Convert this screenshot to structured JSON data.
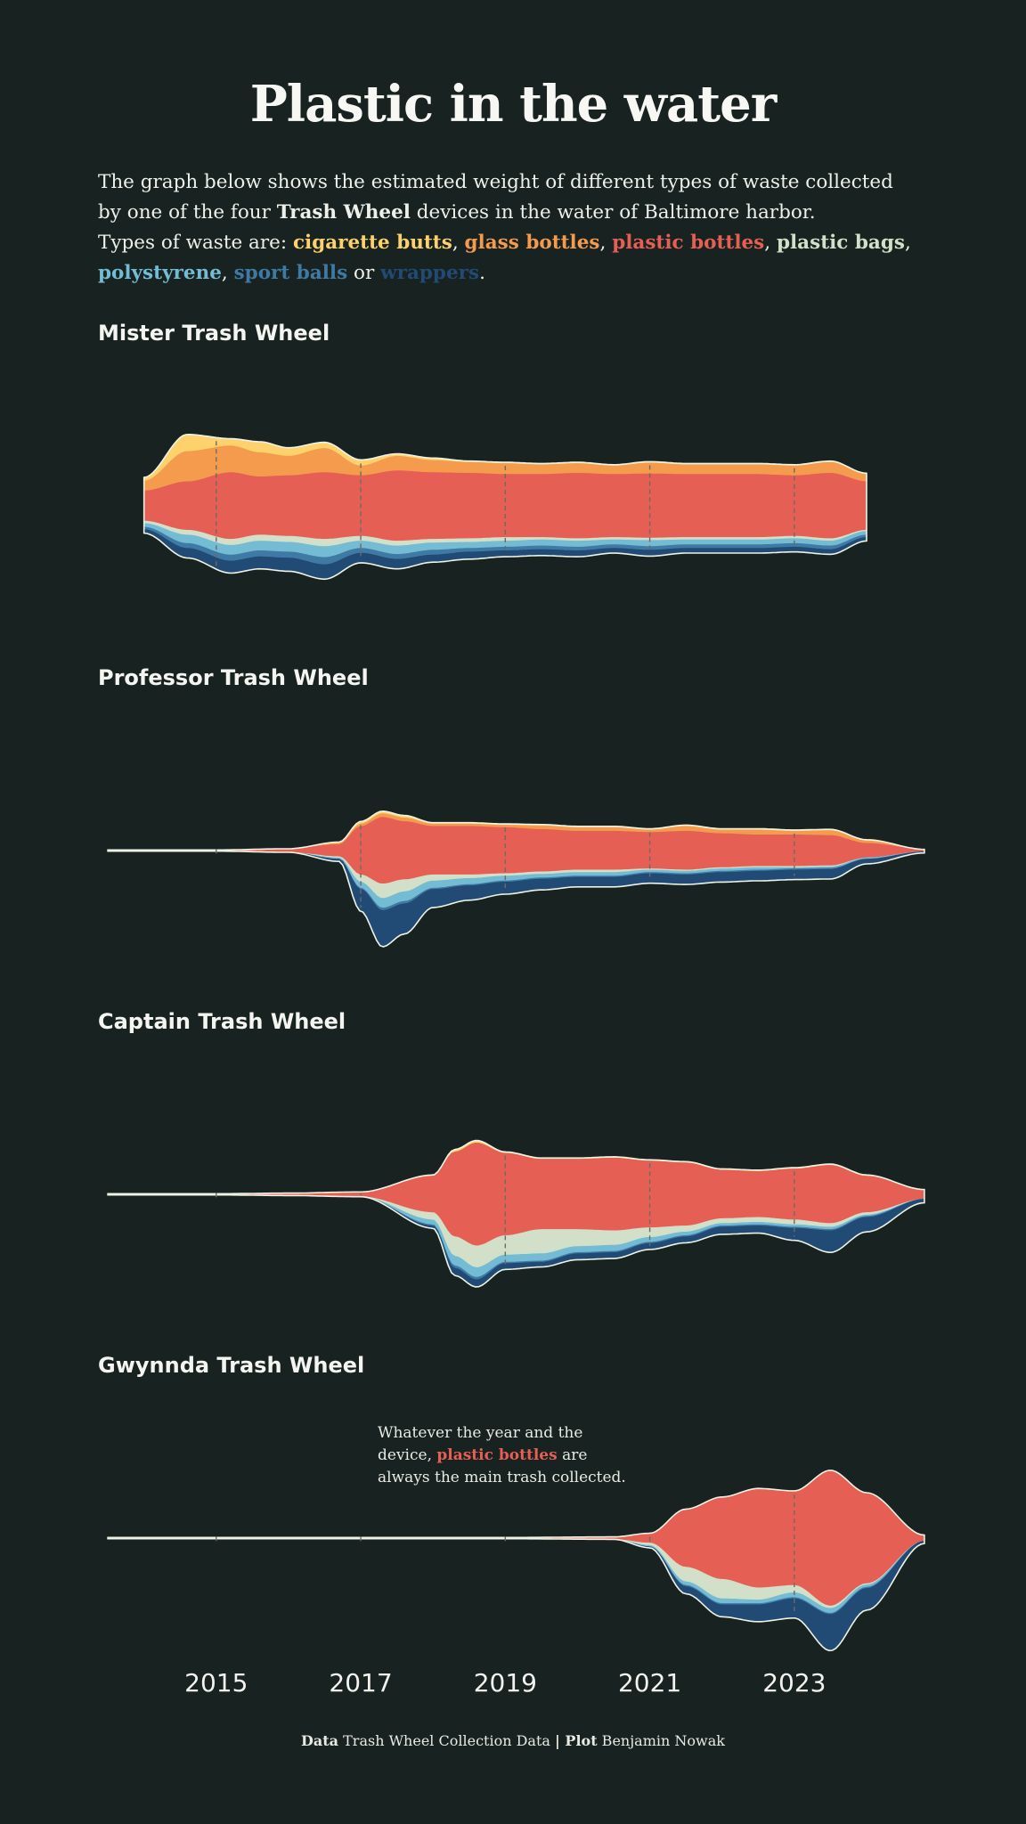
{
  "title": "Plastic in the water",
  "intro": {
    "line1": "The graph below shows the estimated weight of different types of waste collected",
    "line2_prefix": "by one of the four ",
    "line2_bold": "Trash Wheel",
    "line2_suffix": " devices in the water of Baltimore harbor.",
    "line3_prefix": "Types of waste are: ",
    "or_word": "or",
    "sep_comma": ", ",
    "end_period": "."
  },
  "waste_types": [
    {
      "label": "cigarette butts",
      "color": "#fdd16c"
    },
    {
      "label": "glass bottles",
      "color": "#f49b4d"
    },
    {
      "label": "plastic bottles",
      "color": "#e65f55"
    },
    {
      "label": "plastic bags",
      "color": "#d2e0c9"
    },
    {
      "label": "polystyrene",
      "color": "#73bcd4"
    },
    {
      "label": "sport balls",
      "color": "#3f7aa5"
    },
    {
      "label": "wrappers",
      "color": "#214a74"
    }
  ],
  "annotation": {
    "line1": "Whatever the year and the",
    "line2_prefix": "device, ",
    "highlight": "plastic bottles",
    "line2_suffix": " are",
    "line3": "always the main trash collected.",
    "highlight_color": "#e65f55"
  },
  "caption": {
    "data_label": "Data",
    "data_text": " Trash Wheel Collection Data ",
    "sep": "|",
    "plot_label": " Plot",
    "plot_text": " Benjamin Nowak"
  },
  "chart_data": {
    "type": "area",
    "subtype": "streamgraph",
    "x_ticks": [
      2015,
      2017,
      2019,
      2021,
      2023
    ],
    "x_range": [
      2013.4,
      2024.9
    ],
    "units": "estimated weight (relative, approximate)",
    "series_order_top_to_bottom": [
      "cigarette butts",
      "glass bottles",
      "plastic bottles",
      "plastic bags",
      "polystyrene",
      "sport balls",
      "wrappers"
    ],
    "panels": [
      {
        "name": "Mister Trash Wheel",
        "x": [
          2014.0,
          2014.6,
          2015.2,
          2015.6,
          2016.0,
          2016.5,
          2017.0,
          2017.5,
          2018.0,
          2018.5,
          2019.0,
          2019.5,
          2020.0,
          2020.5,
          2021.0,
          2021.5,
          2022.0,
          2022.5,
          2023.0,
          2023.5,
          2024.0
        ],
        "series": [
          {
            "name": "cigarette butts",
            "values": [
              3,
              14,
              6,
              9,
              7,
              5,
              5,
              2,
              2,
              1,
              1,
              1,
              1,
              1,
              1,
              1,
              1,
              1,
              1,
              1,
              1
            ]
          },
          {
            "name": "glass bottles",
            "values": [
              8,
              25,
              22,
              20,
              16,
              20,
              8,
              12,
              10,
              9,
              9,
              8,
              8,
              7,
              9,
              8,
              8,
              8,
              8,
              9,
              6
            ]
          },
          {
            "name": "plastic bottles",
            "values": [
              25,
              40,
              55,
              48,
              50,
              55,
              50,
              58,
              55,
              54,
              52,
              52,
              54,
              52,
              53,
              52,
              52,
              52,
              50,
              54,
              40
            ]
          },
          {
            "name": "plastic bags",
            "values": [
              2,
              4,
              5,
              5,
              5,
              6,
              4,
              4,
              3,
              3,
              3,
              2,
              2,
              2,
              2,
              2,
              2,
              2,
              2,
              2,
              1
            ]
          },
          {
            "name": "polystyrene",
            "values": [
              3,
              7,
              8,
              8,
              8,
              9,
              6,
              7,
              6,
              5,
              5,
              5,
              5,
              4,
              5,
              4,
              4,
              4,
              4,
              4,
              3
            ]
          },
          {
            "name": "sport balls",
            "values": [
              2,
              4,
              5,
              5,
              5,
              6,
              4,
              4,
              4,
              3,
              3,
              3,
              3,
              3,
              3,
              3,
              3,
              3,
              3,
              3,
              2
            ]
          },
          {
            "name": "wrappers",
            "values": [
              3,
              8,
              10,
              10,
              11,
              12,
              8,
              8,
              6,
              6,
              5,
              5,
              5,
              4,
              5,
              4,
              4,
              4,
              4,
              4,
              3
            ]
          }
        ]
      },
      {
        "name": "Professor Trash Wheel",
        "x": [
          2013.5,
          2015.0,
          2016.0,
          2016.7,
          2017.0,
          2017.3,
          2017.6,
          2018.0,
          2018.5,
          2019.0,
          2019.5,
          2020.0,
          2020.5,
          2021.0,
          2021.5,
          2022.0,
          2022.5,
          2023.0,
          2023.5,
          2024.0,
          2024.8
        ],
        "series": [
          {
            "name": "cigarette butts",
            "values": [
              0,
              0,
              0,
              1,
              2,
              2,
              2,
              1,
              1,
              1,
              1,
              1,
              1,
              1,
              1,
              1,
              1,
              1,
              1,
              1,
              0
            ]
          },
          {
            "name": "glass bottles",
            "values": [
              0,
              0,
              0,
              1,
              2,
              3,
              3,
              2,
              2,
              2,
              3,
              3,
              3,
              2,
              4,
              3,
              4,
              3,
              4,
              2,
              0
            ]
          },
          {
            "name": "plastic bottles",
            "values": [
              1,
              1,
              3,
              10,
              40,
              55,
              48,
              40,
              40,
              38,
              35,
              32,
              32,
              30,
              32,
              28,
              26,
              26,
              25,
              12,
              2
            ]
          },
          {
            "name": "plastic bags",
            "values": [
              0,
              0,
              0,
              1,
              6,
              12,
              10,
              5,
              3,
              2,
              2,
              2,
              2,
              1,
              1,
              1,
              1,
              1,
              1,
              0,
              0
            ]
          },
          {
            "name": "polystyrene",
            "values": [
              0,
              0,
              0,
              1,
              5,
              8,
              8,
              6,
              5,
              4,
              3,
              3,
              3,
              2,
              2,
              2,
              2,
              1,
              1,
              1,
              0
            ]
          },
          {
            "name": "sport balls",
            "values": [
              0,
              0,
              0,
              0,
              1,
              2,
              2,
              1,
              1,
              1,
              1,
              1,
              1,
              1,
              1,
              1,
              1,
              1,
              1,
              0,
              0
            ]
          },
          {
            "name": "wrappers",
            "values": [
              0,
              0,
              0,
              2,
              18,
              30,
              25,
              15,
              12,
              10,
              9,
              8,
              8,
              8,
              8,
              8,
              8,
              8,
              8,
              4,
              1
            ]
          }
        ]
      },
      {
        "name": "Captain Trash Wheel",
        "x": [
          2013.5,
          2015.0,
          2016.0,
          2017.0,
          2018.0,
          2018.3,
          2018.6,
          2019.0,
          2019.5,
          2020.0,
          2020.5,
          2021.0,
          2021.5,
          2022.0,
          2022.5,
          2023.0,
          2023.5,
          2024.0,
          2024.8
        ],
        "series": [
          {
            "name": "cigarette butts",
            "values": [
              0,
              0,
              0,
              0,
              1,
              2,
              2,
              1,
              1,
              1,
              1,
              1,
              1,
              1,
              1,
              1,
              1,
              1,
              0
            ]
          },
          {
            "name": "glass bottles",
            "values": [
              0,
              0,
              0,
              0,
              0,
              0,
              0,
              0,
              0,
              0,
              0,
              0,
              0,
              0,
              0,
              0,
              0,
              0,
              0
            ]
          },
          {
            "name": "plastic bottles",
            "values": [
              1,
              1,
              2,
              4,
              30,
              70,
              85,
              68,
              58,
              58,
              60,
              55,
              52,
              40,
              38,
              42,
              48,
              30,
              8
            ]
          },
          {
            "name": "plastic bags",
            "values": [
              0,
              0,
              0,
              0,
              6,
              16,
              18,
              16,
              20,
              14,
              12,
              8,
              5,
              4,
              4,
              4,
              3,
              2,
              0
            ]
          },
          {
            "name": "polystyrene",
            "values": [
              0,
              0,
              0,
              0,
              4,
              8,
              8,
              6,
              6,
              5,
              5,
              4,
              3,
              2,
              2,
              2,
              2,
              1,
              0
            ]
          },
          {
            "name": "sport balls",
            "values": [
              0,
              0,
              0,
              0,
              1,
              2,
              2,
              1,
              1,
              1,
              1,
              1,
              1,
              1,
              1,
              1,
              1,
              1,
              0
            ]
          },
          {
            "name": "wrappers",
            "values": [
              0,
              0,
              0,
              0,
              2,
              6,
              6,
              5,
              4,
              5,
              5,
              5,
              5,
              6,
              6,
              10,
              18,
              12,
              3
            ]
          }
        ]
      },
      {
        "name": "Gwynnda Trash Wheel",
        "x": [
          2013.5,
          2016.0,
          2019.0,
          2020.5,
          2021.0,
          2021.5,
          2022.0,
          2022.5,
          2023.0,
          2023.5,
          2024.0,
          2024.8
        ],
        "series": [
          {
            "name": "cigarette butts",
            "values": [
              0,
              0,
              0,
              0,
              0,
              0,
              0,
              0,
              0,
              0,
              0,
              0
            ]
          },
          {
            "name": "glass bottles",
            "values": [
              0,
              0,
              0,
              0,
              0,
              0,
              0,
              0,
              0,
              0,
              0,
              0
            ]
          },
          {
            "name": "plastic bottles",
            "values": [
              1,
              1,
              1,
              2,
              8,
              48,
              68,
              82,
              78,
              112,
              75,
              5
            ]
          },
          {
            "name": "plastic bags",
            "values": [
              0,
              0,
              0,
              0,
              2,
              12,
              16,
              10,
              6,
              2,
              1,
              0
            ]
          },
          {
            "name": "polystyrene",
            "values": [
              0,
              0,
              0,
              0,
              1,
              3,
              4,
              3,
              4,
              4,
              2,
              0
            ]
          },
          {
            "name": "sport balls",
            "values": [
              0,
              0,
              0,
              0,
              0,
              1,
              1,
              1,
              1,
              1,
              1,
              0
            ]
          },
          {
            "name": "wrappers",
            "values": [
              0,
              0,
              0,
              0,
              1,
              6,
              10,
              14,
              16,
              30,
              18,
              2
            ]
          }
        ]
      }
    ]
  }
}
